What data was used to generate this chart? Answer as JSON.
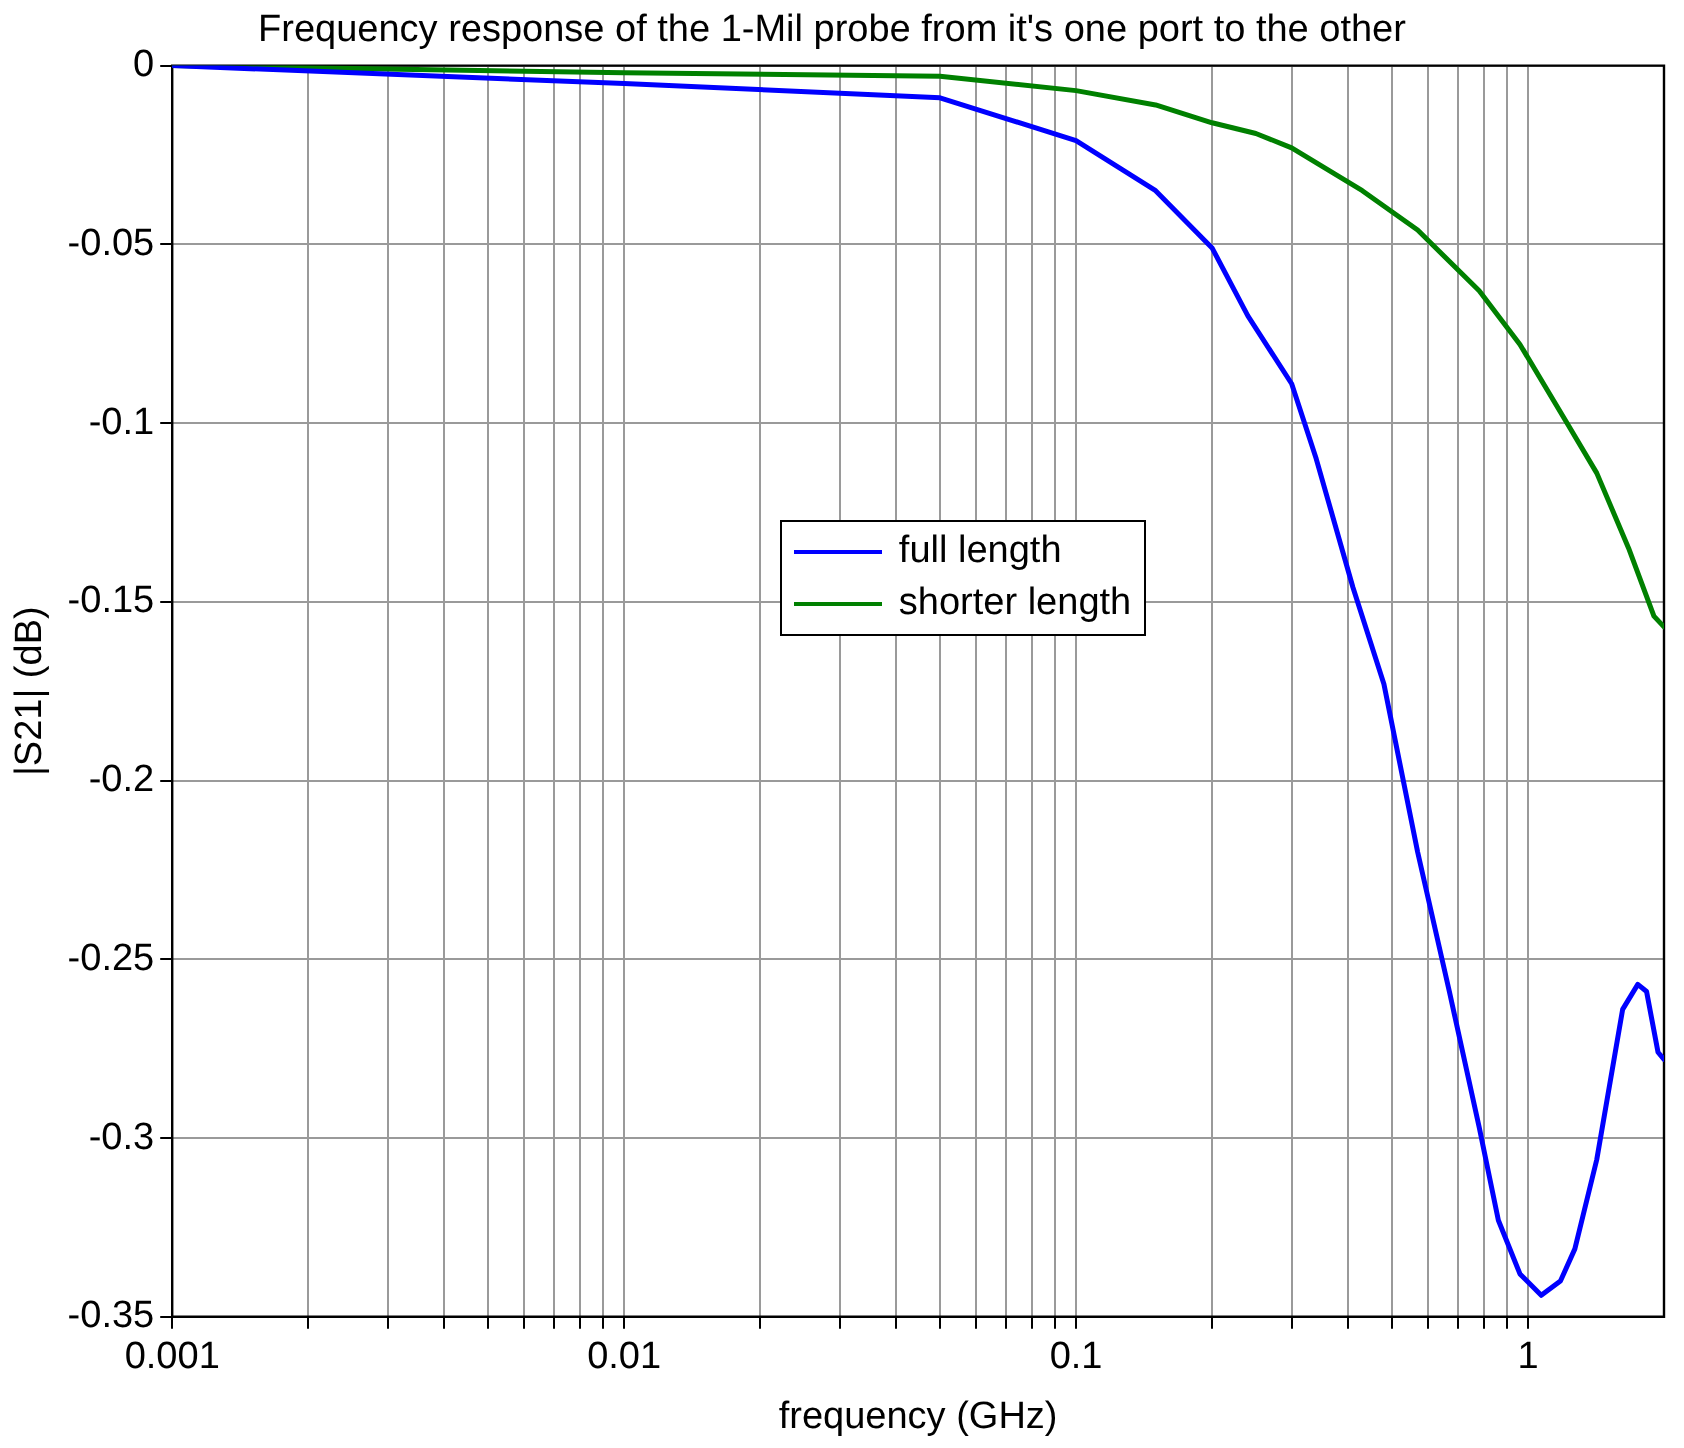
{
  "chart_data": {
    "type": "line",
    "title": "Frequency response of the 1-Mil probe from it's one port to the other",
    "xlabel": "frequency (GHz)",
    "ylabel": "|S21| (dB)",
    "series": [
      {
        "name": "full length",
        "color": "#0000ff",
        "x": [
          0.001,
          0.01,
          0.05,
          0.1,
          0.15,
          0.2,
          0.24,
          0.3,
          0.34,
          0.41,
          0.48,
          0.57,
          0.67,
          0.78,
          0.86,
          0.96,
          1.07,
          1.18,
          1.27,
          1.42,
          1.62,
          1.75,
          1.83,
          1.94,
          2
        ],
        "values": [
          0,
          -0.005,
          -0.009,
          -0.021,
          -0.035,
          -0.051,
          -0.07,
          -0.089,
          -0.11,
          -0.146,
          -0.173,
          -0.22,
          -0.259,
          -0.297,
          -0.323,
          -0.338,
          -0.344,
          -0.34,
          -0.331,
          -0.306,
          -0.264,
          -0.257,
          -0.259,
          -0.276,
          -0.278
        ]
      },
      {
        "name": "shorter length",
        "color": "#008000",
        "x": [
          0.001,
          0.01,
          0.05,
          0.1,
          0.15,
          0.2,
          0.25,
          0.3,
          0.43,
          0.57,
          0.78,
          0.96,
          1.22,
          1.42,
          1.67,
          1.9,
          2
        ],
        "values": [
          0,
          -0.002,
          -0.003,
          -0.007,
          -0.011,
          -0.016,
          -0.019,
          -0.023,
          -0.035,
          -0.046,
          -0.063,
          -0.078,
          -0.1,
          -0.114,
          -0.135,
          -0.154,
          -0.157
        ]
      }
    ],
    "log": "x",
    "xlim": [
      0.001,
      2
    ],
    "xticks": [
      0.001,
      {
        "value": 0.002,
        "label": null
      },
      {
        "value": 0.003,
        "label": null
      },
      {
        "value": 0.004,
        "label": null
      },
      {
        "value": 0.005,
        "label": null
      },
      {
        "value": 0.006,
        "label": null
      },
      {
        "value": 0.007,
        "label": null
      },
      {
        "value": 0.008,
        "label": null
      },
      {
        "value": 0.009,
        "label": null
      },
      0.01,
      {
        "value": 0.02,
        "label": null
      },
      {
        "value": 0.03,
        "label": null
      },
      {
        "value": 0.04,
        "label": null
      },
      {
        "value": 0.05,
        "label": null
      },
      {
        "value": 0.06,
        "label": null
      },
      {
        "value": 0.07,
        "label": null
      },
      {
        "value": 0.08,
        "label": null
      },
      {
        "value": 0.09,
        "label": null
      },
      0.1,
      {
        "value": 0.2,
        "label": null
      },
      {
        "value": 0.3,
        "label": null
      },
      {
        "value": 0.4,
        "label": null
      },
      {
        "value": 0.5,
        "label": null
      },
      {
        "value": 0.6,
        "label": null
      },
      {
        "value": 0.7,
        "label": null
      },
      {
        "value": 0.8,
        "label": null
      },
      {
        "value": 0.9,
        "label": null
      },
      1
    ],
    "ylim": [
      -0.35,
      0
    ],
    "yticks": [
      -0.35,
      -0.3,
      -0.25,
      -0.2,
      -0.15,
      -0.1,
      -0.05,
      0
    ],
    "grid": true,
    "legend": "center",
    "marker": "none",
    "line_style": "solid"
  }
}
